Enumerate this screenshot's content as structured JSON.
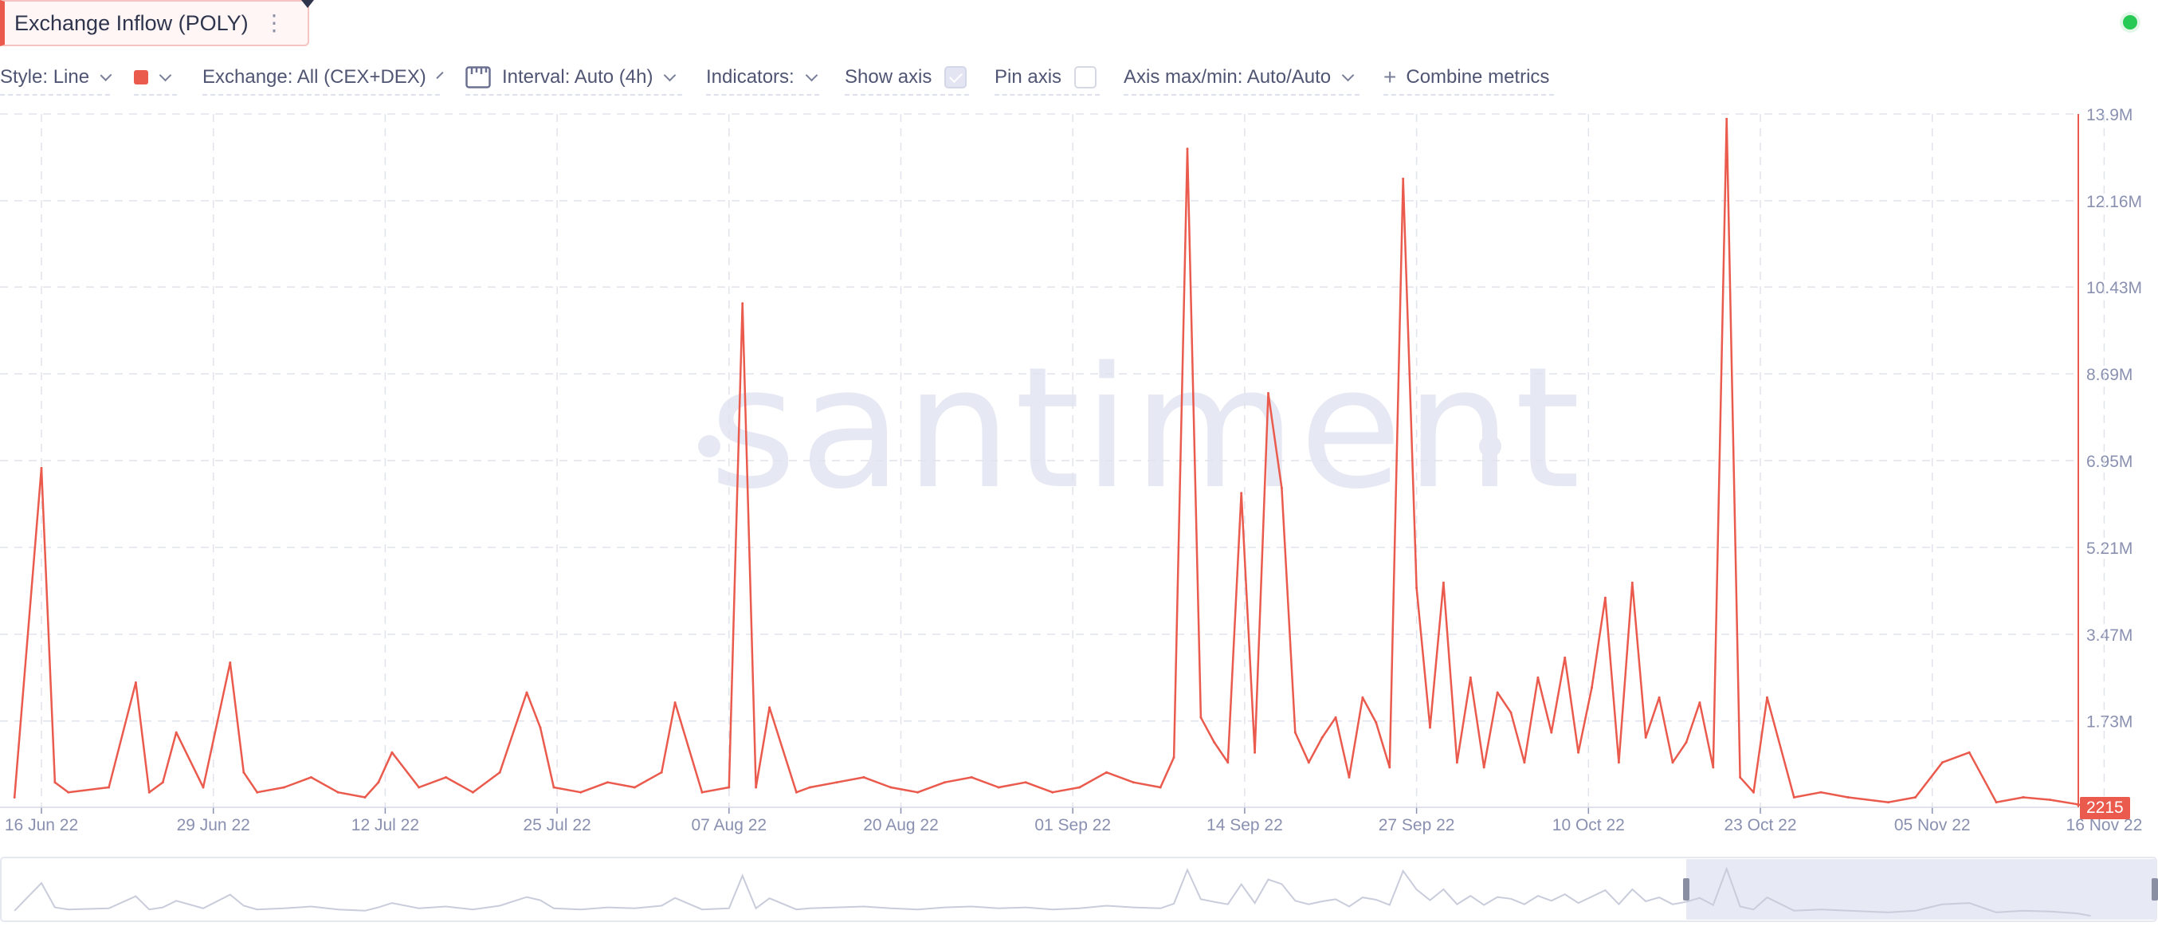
{
  "metric": {
    "title": "Exchange Inflow (POLY)"
  },
  "toolbar": {
    "style_label": "Style: Line",
    "exchange_label": "Exchange: All (CEX+DEX)",
    "interval_label": "Interval: Auto (4h)",
    "indicators_label": "Indicators:",
    "show_axis_label": "Show axis",
    "show_axis_checked": true,
    "pin_axis_label": "Pin axis",
    "pin_axis_checked": false,
    "axis_minmax_label": "Axis max/min: Auto/Auto",
    "combine_label": "Combine metrics"
  },
  "watermark": "santiment",
  "colors": {
    "series": "#ea5a4d",
    "grid": "#e1e3ec",
    "label": "#8a90b0",
    "navigator": "#c9ccdb"
  },
  "chart_data": {
    "type": "line",
    "xlabel": "",
    "ylabel": "",
    "ylim": [
      0,
      13900000
    ],
    "y_tick_labels": [
      "1.73M",
      "3.47M",
      "5.21M",
      "6.95M",
      "8.69M",
      "10.43M",
      "12.16M",
      "13.9M"
    ],
    "y_tick_values": [
      1730000,
      3470000,
      5210000,
      6950000,
      8690000,
      10430000,
      12160000,
      13900000
    ],
    "x_tick_labels": [
      "16 Jun 22",
      "29 Jun 22",
      "12 Jul 22",
      "25 Jul 22",
      "07 Aug 22",
      "20 Aug 22",
      "01 Sep 22",
      "14 Sep 22",
      "27 Sep 22",
      "10 Oct 22",
      "23 Oct 22",
      "05 Nov 22",
      "16 Nov 22"
    ],
    "grid": true,
    "last_value_label": "2215",
    "series": [
      {
        "x": [
          "2022-06-14",
          "2022-06-16",
          "2022-06-17",
          "2022-06-18",
          "2022-06-21",
          "2022-06-23",
          "2022-06-24",
          "2022-06-25",
          "2022-06-26",
          "2022-06-28",
          "2022-06-30",
          "2022-07-01",
          "2022-07-02",
          "2022-07-04",
          "2022-07-06",
          "2022-07-08",
          "2022-07-10",
          "2022-07-11",
          "2022-07-12",
          "2022-07-14",
          "2022-07-16",
          "2022-07-18",
          "2022-07-20",
          "2022-07-22",
          "2022-07-23",
          "2022-07-24",
          "2022-07-26",
          "2022-07-28",
          "2022-07-30",
          "2022-08-01",
          "2022-08-02",
          "2022-08-04",
          "2022-08-06",
          "2022-08-07",
          "2022-08-08",
          "2022-08-09",
          "2022-08-11",
          "2022-08-12",
          "2022-08-14",
          "2022-08-16",
          "2022-08-18",
          "2022-08-20",
          "2022-08-22",
          "2022-08-24",
          "2022-08-26",
          "2022-08-28",
          "2022-08-30",
          "2022-09-01",
          "2022-09-03",
          "2022-09-05",
          "2022-09-07",
          "2022-09-08",
          "2022-09-09",
          "2022-09-10",
          "2022-09-11",
          "2022-09-12",
          "2022-09-13",
          "2022-09-14",
          "2022-09-15",
          "2022-09-16",
          "2022-09-17",
          "2022-09-18",
          "2022-09-19",
          "2022-09-20",
          "2022-09-21",
          "2022-09-22",
          "2022-09-23",
          "2022-09-24",
          "2022-09-25",
          "2022-09-26",
          "2022-09-27",
          "2022-09-28",
          "2022-09-29",
          "2022-09-30",
          "2022-10-01",
          "2022-10-02",
          "2022-10-03",
          "2022-10-04",
          "2022-10-05",
          "2022-10-06",
          "2022-10-07",
          "2022-10-08",
          "2022-10-09",
          "2022-10-10",
          "2022-10-11",
          "2022-10-12",
          "2022-10-13",
          "2022-10-14",
          "2022-10-15",
          "2022-10-16",
          "2022-10-17",
          "2022-10-18",
          "2022-10-19",
          "2022-10-20",
          "2022-10-21",
          "2022-10-22",
          "2022-10-24",
          "2022-10-26",
          "2022-10-28",
          "2022-10-31",
          "2022-11-02",
          "2022-11-04",
          "2022-11-06",
          "2022-11-08",
          "2022-11-10",
          "2022-11-12",
          "2022-11-14",
          "2022-11-15"
        ],
        "values": [
          200000,
          6800000,
          500000,
          300000,
          400000,
          2500000,
          300000,
          500000,
          1500000,
          400000,
          2900000,
          700000,
          300000,
          400000,
          600000,
          300000,
          200000,
          500000,
          1100000,
          400000,
          600000,
          300000,
          700000,
          2300000,
          1600000,
          400000,
          300000,
          500000,
          400000,
          700000,
          2100000,
          300000,
          400000,
          10100000,
          400000,
          2000000,
          300000,
          400000,
          500000,
          600000,
          400000,
          300000,
          500000,
          600000,
          400000,
          500000,
          300000,
          400000,
          700000,
          500000,
          400000,
          1000000,
          13200000,
          1800000,
          1300000,
          900000,
          6300000,
          1100000,
          8300000,
          6400000,
          1500000,
          900000,
          1400000,
          1800000,
          600000,
          2200000,
          1700000,
          800000,
          12600000,
          4400000,
          1600000,
          4500000,
          900000,
          2600000,
          800000,
          2300000,
          1900000,
          900000,
          2600000,
          1500000,
          3000000,
          1100000,
          2400000,
          4200000,
          900000,
          4500000,
          1400000,
          2200000,
          900000,
          1300000,
          2100000,
          800000,
          13800000,
          600000,
          300000,
          2200000,
          200000,
          300000,
          200000,
          100000,
          200000,
          900000,
          1100000,
          100000,
          200000,
          150000,
          60000,
          2215
        ]
      }
    ]
  }
}
